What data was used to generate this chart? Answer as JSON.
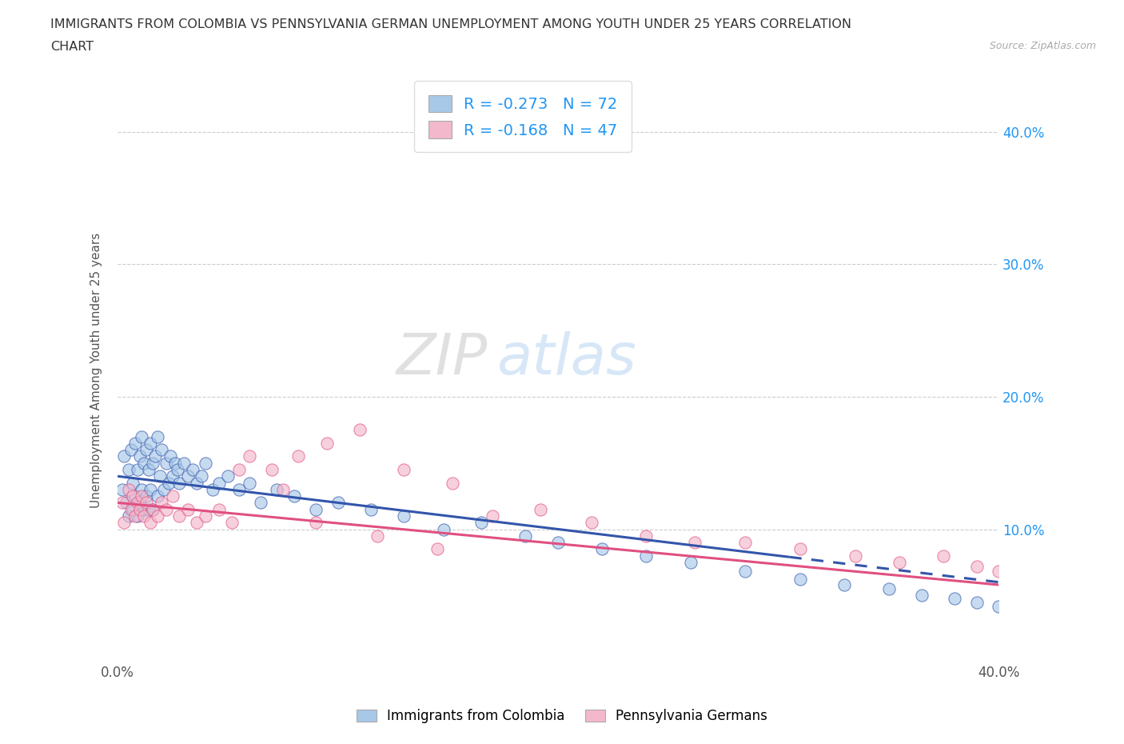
{
  "title_line1": "IMMIGRANTS FROM COLOMBIA VS PENNSYLVANIA GERMAN UNEMPLOYMENT AMONG YOUTH UNDER 25 YEARS CORRELATION",
  "title_line2": "CHART",
  "source": "Source: ZipAtlas.com",
  "ylabel": "Unemployment Among Youth under 25 years",
  "xlim": [
    0.0,
    0.4
  ],
  "ylim": [
    0.0,
    0.44
  ],
  "color_blue": "#a8c8e8",
  "color_pink": "#f4b8cc",
  "color_blue_line": "#3355aa",
  "color_pink_line": "#e05080",
  "R_blue": -0.273,
  "N_blue": 72,
  "R_pink": -0.168,
  "N_pink": 47,
  "watermark_zip": "ZIP",
  "watermark_atlas": "atlas",
  "blue_scatter_x": [
    0.002,
    0.003,
    0.004,
    0.005,
    0.005,
    0.006,
    0.007,
    0.007,
    0.008,
    0.008,
    0.009,
    0.009,
    0.01,
    0.01,
    0.011,
    0.011,
    0.012,
    0.012,
    0.013,
    0.013,
    0.014,
    0.014,
    0.015,
    0.015,
    0.016,
    0.016,
    0.017,
    0.018,
    0.018,
    0.019,
    0.02,
    0.021,
    0.022,
    0.023,
    0.024,
    0.025,
    0.026,
    0.027,
    0.028,
    0.03,
    0.032,
    0.034,
    0.036,
    0.038,
    0.04,
    0.043,
    0.046,
    0.05,
    0.055,
    0.06,
    0.065,
    0.072,
    0.08,
    0.09,
    0.1,
    0.115,
    0.13,
    0.148,
    0.165,
    0.185,
    0.2,
    0.22,
    0.24,
    0.26,
    0.285,
    0.31,
    0.33,
    0.35,
    0.365,
    0.38,
    0.39,
    0.4
  ],
  "blue_scatter_y": [
    0.13,
    0.155,
    0.12,
    0.145,
    0.11,
    0.16,
    0.135,
    0.115,
    0.165,
    0.125,
    0.145,
    0.11,
    0.155,
    0.12,
    0.17,
    0.13,
    0.15,
    0.115,
    0.16,
    0.125,
    0.145,
    0.115,
    0.165,
    0.13,
    0.15,
    0.115,
    0.155,
    0.17,
    0.125,
    0.14,
    0.16,
    0.13,
    0.15,
    0.135,
    0.155,
    0.14,
    0.15,
    0.145,
    0.135,
    0.15,
    0.14,
    0.145,
    0.135,
    0.14,
    0.15,
    0.13,
    0.135,
    0.14,
    0.13,
    0.135,
    0.12,
    0.13,
    0.125,
    0.115,
    0.12,
    0.115,
    0.11,
    0.1,
    0.105,
    0.095,
    0.09,
    0.085,
    0.08,
    0.075,
    0.068,
    0.062,
    0.058,
    0.055,
    0.05,
    0.048,
    0.045,
    0.042
  ],
  "pink_scatter_x": [
    0.002,
    0.003,
    0.005,
    0.006,
    0.007,
    0.008,
    0.009,
    0.01,
    0.011,
    0.012,
    0.013,
    0.015,
    0.016,
    0.018,
    0.02,
    0.022,
    0.025,
    0.028,
    0.032,
    0.036,
    0.04,
    0.046,
    0.052,
    0.06,
    0.07,
    0.082,
    0.095,
    0.11,
    0.13,
    0.152,
    0.17,
    0.192,
    0.215,
    0.24,
    0.262,
    0.285,
    0.31,
    0.335,
    0.355,
    0.375,
    0.39,
    0.4,
    0.055,
    0.075,
    0.09,
    0.118,
    0.145
  ],
  "pink_scatter_y": [
    0.12,
    0.105,
    0.13,
    0.115,
    0.125,
    0.11,
    0.12,
    0.115,
    0.125,
    0.11,
    0.12,
    0.105,
    0.115,
    0.11,
    0.12,
    0.115,
    0.125,
    0.11,
    0.115,
    0.105,
    0.11,
    0.115,
    0.105,
    0.155,
    0.145,
    0.155,
    0.165,
    0.175,
    0.145,
    0.135,
    0.11,
    0.115,
    0.105,
    0.095,
    0.09,
    0.09,
    0.085,
    0.08,
    0.075,
    0.08,
    0.072,
    0.068,
    0.145,
    0.13,
    0.105,
    0.095,
    0.085
  ],
  "blue_line_x0": 0.0,
  "blue_line_y0": 0.14,
  "blue_line_x1": 0.4,
  "blue_line_y1": 0.06,
  "pink_line_x0": 0.0,
  "pink_line_y0": 0.12,
  "pink_line_x1": 0.4,
  "pink_line_y1": 0.058,
  "blue_dash_split": 0.305,
  "pink_dash_split": 0.4
}
